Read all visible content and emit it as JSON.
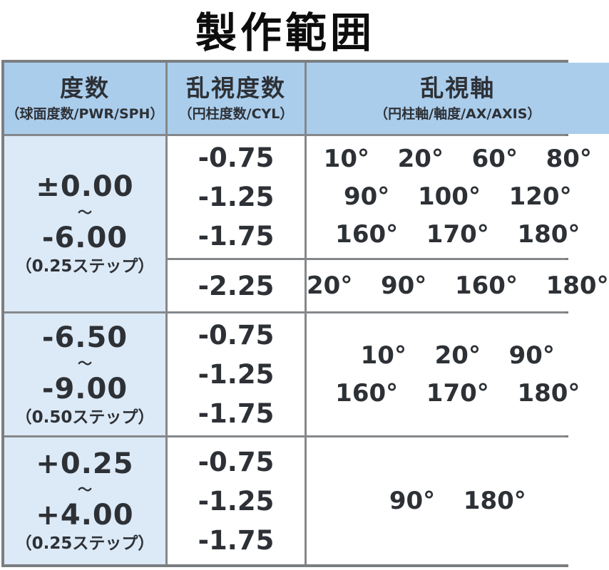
{
  "page": {
    "title": "製作範囲"
  },
  "colors": {
    "header_bg": "#abcdec",
    "power_column_bg": "#dce9f6",
    "cell_bg": "#ffffff",
    "gridline": "#85888b",
    "outer_border": "#7b7e81",
    "text": "#2d3136",
    "title_text": "#0d0d0d"
  },
  "table": {
    "headers": [
      {
        "main": "度数",
        "sub": "（球面度数/PWR/SPH）"
      },
      {
        "main": "乱視度数",
        "sub": "（円柱度数/CYL）"
      },
      {
        "main": "乱視軸",
        "sub": "（円柱軸/軸度/AX/AXIS）"
      }
    ],
    "rows": [
      {
        "power": {
          "from": "±0.00",
          "tilde": "〜",
          "to": "-6.00",
          "step": "（0.25ステップ）"
        },
        "subrows": [
          {
            "cyl": [
              "-0.75",
              "-1.25",
              "-1.75"
            ],
            "axis_lines": [
              "10°  20°  60°  80°",
              "90°  100°  120°",
              "160°  170°  180°"
            ]
          },
          {
            "cyl": [
              "-2.25"
            ],
            "axis_lines": [
              "20°  90°  160°  180°"
            ]
          }
        ]
      },
      {
        "power": {
          "from": "-6.50",
          "tilde": "〜",
          "to": "-9.00",
          "step": "（0.50ステップ）"
        },
        "subrows": [
          {
            "cyl": [
              "-0.75",
              "-1.25",
              "-1.75"
            ],
            "axis_lines": [
              "10°  20°  90°",
              "160°  170°  180°"
            ]
          }
        ]
      },
      {
        "power": {
          "from": "+0.25",
          "tilde": "〜",
          "to": "+4.00",
          "step": "（0.25ステップ）"
        },
        "subrows": [
          {
            "cyl": [
              "-0.75",
              "-1.25",
              "-1.75"
            ],
            "axis_lines": [
              "90°  180°"
            ]
          }
        ]
      }
    ]
  }
}
